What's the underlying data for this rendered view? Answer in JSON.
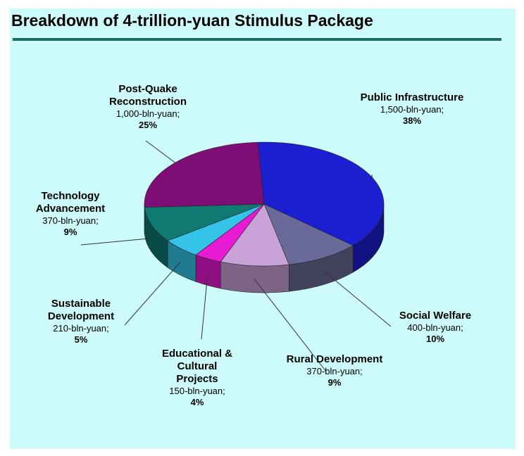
{
  "chart_data": {
    "type": "pie",
    "title": "Breakdown of 4-trillion-yuan Stimulus Package",
    "slices": [
      {
        "name": "Public Infrastructure",
        "amount": "1,500-bln-yuan;",
        "value": 1500,
        "percent": "38%",
        "color": "#1c1ed2"
      },
      {
        "name": "Social Welfare",
        "amount": "400-bln-yuan;",
        "value": 400,
        "percent": "10%",
        "color": "#6a6a9a"
      },
      {
        "name": "Rural Development",
        "amount": "370-bln-yuan;",
        "value": 370,
        "percent": "9%",
        "color": "#c9a2d8"
      },
      {
        "name": "Educational & Cultural Projects",
        "name_lines": [
          "Educational &",
          "Cultural",
          "Projects"
        ],
        "amount": "150-bln-yuan;",
        "value": 150,
        "percent": "4%",
        "color": "#e81ad4"
      },
      {
        "name": "Sustainable Development",
        "name_lines": [
          "Sustainable",
          "Development"
        ],
        "amount": "210-bln-yuan;",
        "value": 210,
        "percent": "5%",
        "color": "#33c4e8"
      },
      {
        "name": "Technology Advancement",
        "name_lines": [
          "Technology",
          "Advancement"
        ],
        "amount": "370-bln-yuan;",
        "value": 370,
        "percent": "9%",
        "color": "#0f7a72"
      },
      {
        "name": "Post-Quake Reconstruction",
        "name_lines": [
          "Post-Quake",
          "Reconstruction"
        ],
        "amount": "1,000-bln-yuan;",
        "value": 1000,
        "percent": "25%",
        "color": "#7e0d76"
      }
    ],
    "legend": "none"
  }
}
